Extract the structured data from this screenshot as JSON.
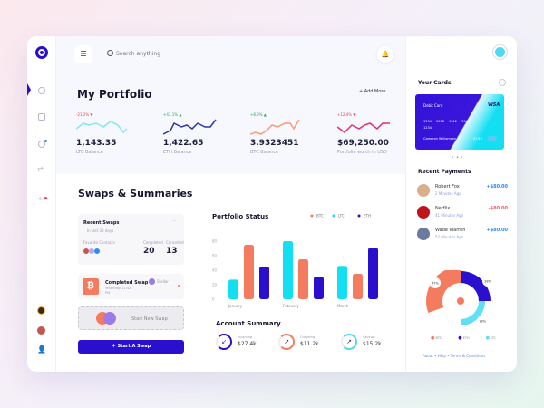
{
  "search": {
    "placeholder": "Search anything"
  },
  "portfolio": {
    "title": "My Portfolio",
    "add_more": "+ Add More",
    "items": [
      {
        "change": "-21.2%",
        "dir": "down",
        "value": "1,143.35",
        "label": "LTC Balance",
        "color": "#7ee8f5"
      },
      {
        "change": "+43.1%",
        "dir": "up",
        "value": "1,422.65",
        "label": "ETH Balance",
        "color": "#2a36a8"
      },
      {
        "change": "+8.9%",
        "dir": "up",
        "value": "3.9323451",
        "label": "BTC Balance",
        "color": "#f99a78"
      },
      {
        "change": "+12.4%",
        "dir": "down",
        "value": "$69,250.00",
        "label": "Portfolio worth in USD",
        "color": "#e0306a"
      }
    ]
  },
  "swaps": {
    "title": "Swaps & Summaries",
    "recent": {
      "title": "Recent Swaps",
      "subtitle": "In last 30 days",
      "fav": "Favorite Contacts",
      "completed_label": "Completed",
      "completed": "20",
      "cancelled_label": "Cancelled",
      "cancelled": "13",
      "more": "..."
    },
    "completed_swap": {
      "title": "Completed Swap",
      "date": "Yesterday 11:42",
      "time": "PM",
      "contact": "Stellar"
    },
    "start_new": "Start New Swap",
    "start_button": "Start A Swap"
  },
  "chart_data": {
    "type": "bar",
    "title": "Portfolio Status",
    "categories": [
      "January",
      "February",
      "March"
    ],
    "series": [
      {
        "name": "BTC",
        "values": [
          75,
          55,
          35
        ],
        "color": "#f47b5e"
      },
      {
        "name": "LTC",
        "values": [
          27,
          80,
          46
        ],
        "color": "#13dff3"
      },
      {
        "name": "ETH",
        "values": [
          45,
          31,
          71
        ],
        "color": "#2a0fcf"
      }
    ],
    "order": [
      "LTC",
      "BTC",
      "ETH"
    ],
    "yticks": [
      0,
      20,
      40,
      60,
      80
    ],
    "ylim": [
      0,
      80
    ],
    "legend": "top-right",
    "grid": false
  },
  "summary": {
    "title": "Account Summary",
    "items": [
      {
        "label": "Incoming",
        "value": "$27.4k",
        "color": "#2a0fcf",
        "icon": "arrow-down-left-icon",
        "glyph": "↙"
      },
      {
        "label": "Outgoing",
        "value": "$11.2k",
        "color": "#f47b5e",
        "icon": "arrow-up-right-icon",
        "glyph": "↗"
      },
      {
        "label": "Savings",
        "value": "$15.2k",
        "color": "#4fd8f0",
        "icon": "arrow-up-right-icon",
        "glyph": "↗"
      }
    ]
  },
  "cards": {
    "title": "Your Cards",
    "type": "Debit Card",
    "brand": "VISA",
    "number": [
      "1234",
      "5678",
      "9012",
      "3344",
      "1234"
    ],
    "holder": "Cameron Williamson",
    "expiry": "07/12"
  },
  "payments": {
    "title": "Recent Payments",
    "more": "...",
    "items": [
      {
        "name": "Robert Fox",
        "time": "2 Minutes Ago",
        "amount": "+$80.00",
        "color": "#2f8df0"
      },
      {
        "name": "Netflix",
        "time": "41 Minutes Ago",
        "amount": "-$80.00",
        "color": "#f0606a"
      },
      {
        "name": "Wade Warren",
        "time": "52 Minutes Ago",
        "amount": "+$80.00",
        "color": "#2f8df0"
      }
    ]
  },
  "donut": {
    "slices": [
      {
        "name": "BTC",
        "percent": 47,
        "color": "#f47b5e"
      },
      {
        "name": "ETH",
        "percent": 28,
        "color": "#2a0fcf"
      },
      {
        "name": "LTC",
        "percent": 18,
        "color": "#5fe0f5"
      }
    ],
    "labels": [
      "47%",
      "28%",
      "18%"
    ]
  },
  "footer": {
    "about": "About",
    "help": "Help",
    "terms": "Terms & Conditions"
  }
}
